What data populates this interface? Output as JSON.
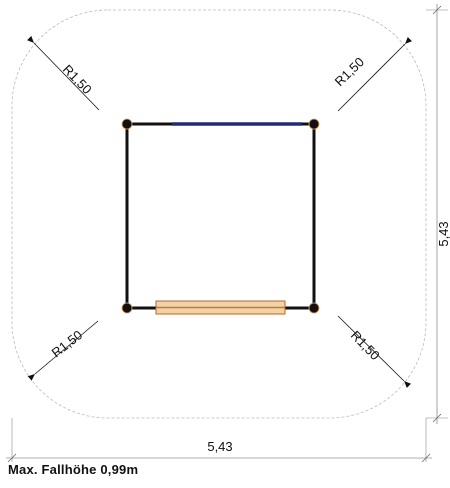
{
  "diagram": {
    "radius_labels": [
      "R1,50",
      "R1,50",
      "R1,50",
      "R1,50"
    ],
    "width_label": "5,43",
    "height_label": "5,43",
    "caption": "Max. Fallhöhe 0,99m",
    "colors": {
      "frame": "#111111",
      "top_bar": "#1f2a7a",
      "beam": "#e0a060",
      "boundary": "#b9b9c9",
      "dimension": "#666666"
    }
  }
}
